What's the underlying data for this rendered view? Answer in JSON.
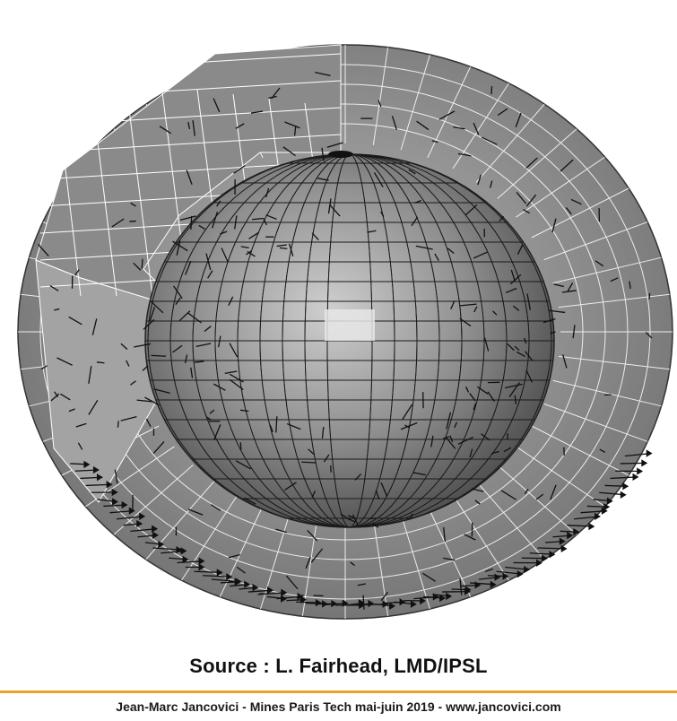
{
  "caption": {
    "source": "Source : L. Fairhead, LMD/IPSL"
  },
  "footer": {
    "text": "Jean-Marc Jancovici - Mines Paris Tech mai-juin 2019 - www.jancovici.com"
  },
  "colors": {
    "accent_rule": "#f0a020",
    "shell": "#9a9a9a",
    "globe": "#8c8c8c",
    "grid": "#ffffff",
    "globe_grid": "#1a1a1a"
  },
  "diagram": {
    "subject": "3D climate model grid cutaway showing the globe and an atmospheric shell with wind vectors"
  }
}
